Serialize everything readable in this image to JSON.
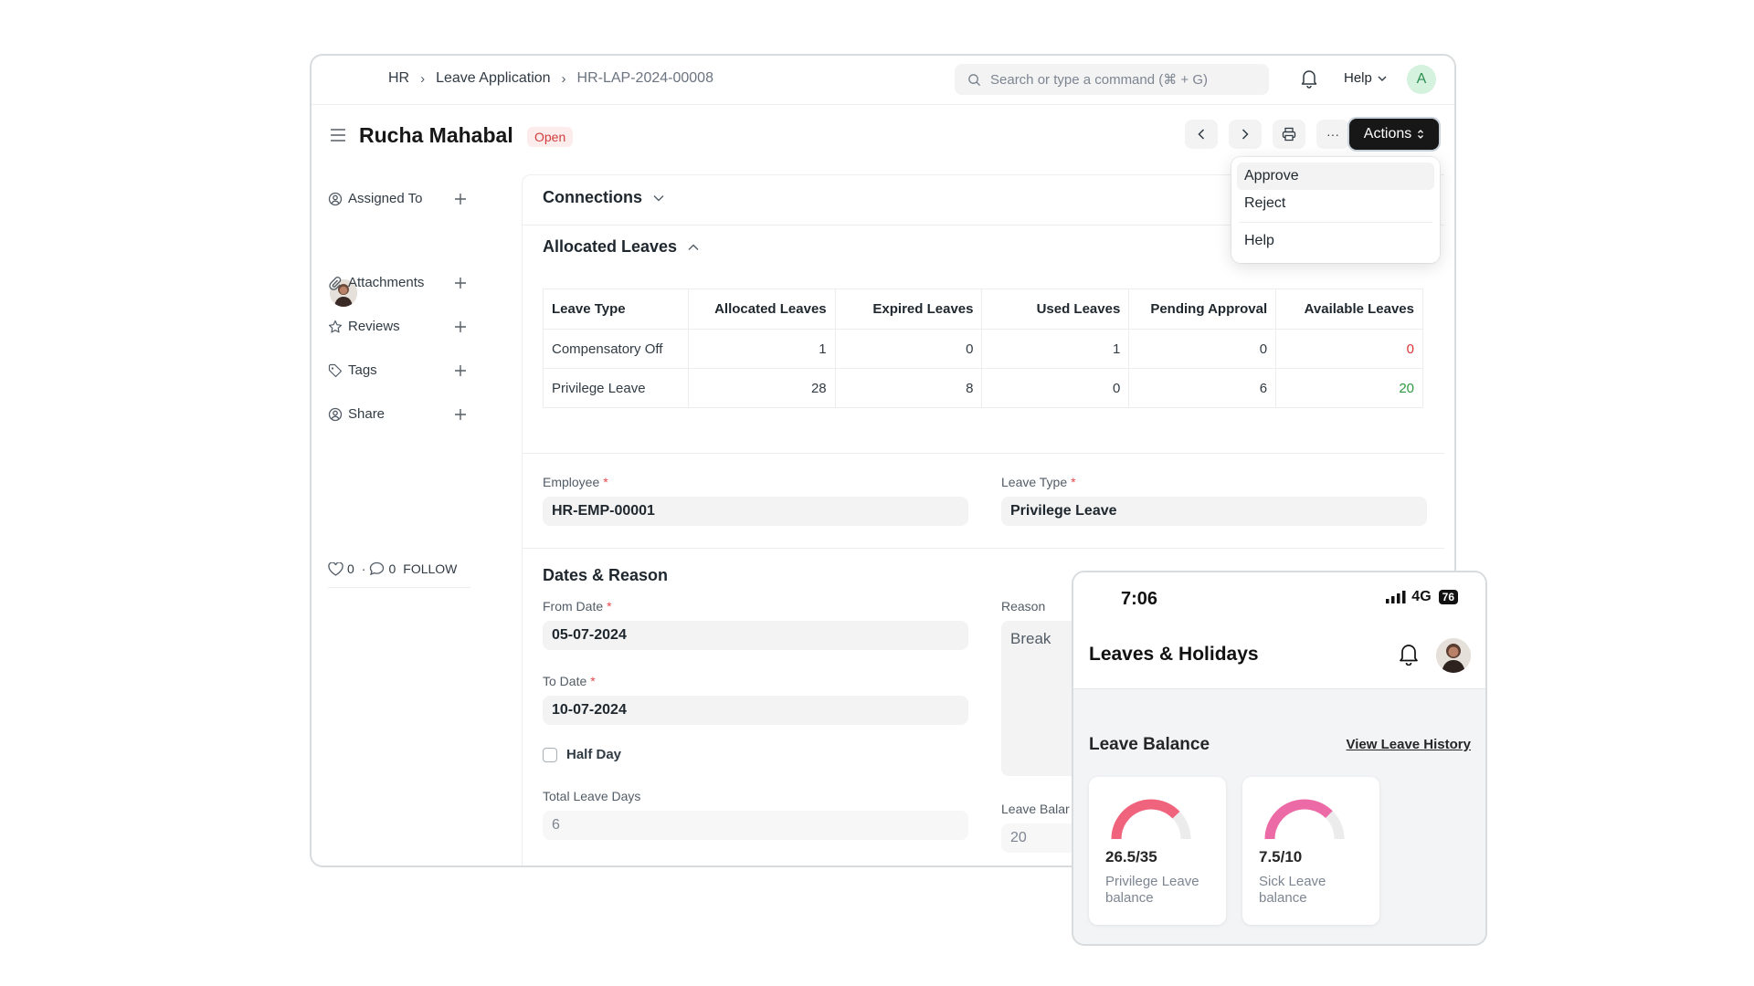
{
  "navbar": {
    "breadcrumbs": [
      "HR",
      "Leave Application",
      "HR-LAP-2024-00008"
    ],
    "search_placeholder": "Search or type a command (⌘ + G)",
    "help_label": "Help",
    "avatar_initial": "A"
  },
  "page": {
    "title": "Rucha Mahabal",
    "status": "Open",
    "status_color": "#d03d3d",
    "more_label": "···",
    "actions_label": "Actions"
  },
  "actions_menu": {
    "items": [
      "Approve",
      "Reject",
      "Help"
    ]
  },
  "sidebar": {
    "items": [
      {
        "label": "Assigned To",
        "icon": "assign-icon"
      },
      {
        "label": "Attachments",
        "icon": "paperclip-icon"
      },
      {
        "label": "Reviews",
        "icon": "star-icon"
      },
      {
        "label": "Tags",
        "icon": "tag-icon"
      },
      {
        "label": "Share",
        "icon": "share-icon"
      }
    ],
    "likes": "0",
    "comments": "0",
    "follow_label": "FOLLOW"
  },
  "sections": {
    "connections": "Connections",
    "allocated": "Allocated Leaves",
    "dates_reason": "Dates & Reason"
  },
  "allocated_table": {
    "headers": [
      "Leave Type",
      "Allocated Leaves",
      "Expired Leaves",
      "Used Leaves",
      "Pending Approval",
      "Available Leaves"
    ],
    "rows": [
      {
        "cells": [
          "Compensatory Off",
          "1",
          "0",
          "1",
          "0",
          "0"
        ],
        "available_color": "#e03636"
      },
      {
        "cells": [
          "Privilege Leave",
          "28",
          "8",
          "0",
          "6",
          "20"
        ],
        "available_color": "#2f9a3f"
      }
    ]
  },
  "form": {
    "employee": {
      "label": "Employee",
      "value": "HR-EMP-00001"
    },
    "leave_type": {
      "label": "Leave Type",
      "value": "Privilege Leave"
    },
    "from_date": {
      "label": "From Date",
      "value": "05-07-2024"
    },
    "to_date": {
      "label": "To Date",
      "value": "10-07-2024"
    },
    "half_day": {
      "label": "Half Day",
      "checked": false
    },
    "total_days": {
      "label": "Total Leave Days",
      "value": "6"
    },
    "reason": {
      "label": "Reason",
      "value": "Break"
    },
    "leave_balance": {
      "label": "Leave Balar",
      "value": "20"
    },
    "required_mark": "*"
  },
  "mobile": {
    "time": "7:06",
    "network": "4G",
    "battery": "76",
    "title": "Leaves & Holidays",
    "section": "Leave Balance",
    "history_link": "View Leave History",
    "cards": [
      {
        "value": "26.5/35",
        "caption": "Privilege Leave balance",
        "fraction": 0.757,
        "color": "#f0637c"
      },
      {
        "value": "7.5/10",
        "caption": "Sick Leave balance",
        "fraction": 0.75,
        "color": "#ec6aa6"
      }
    ]
  }
}
